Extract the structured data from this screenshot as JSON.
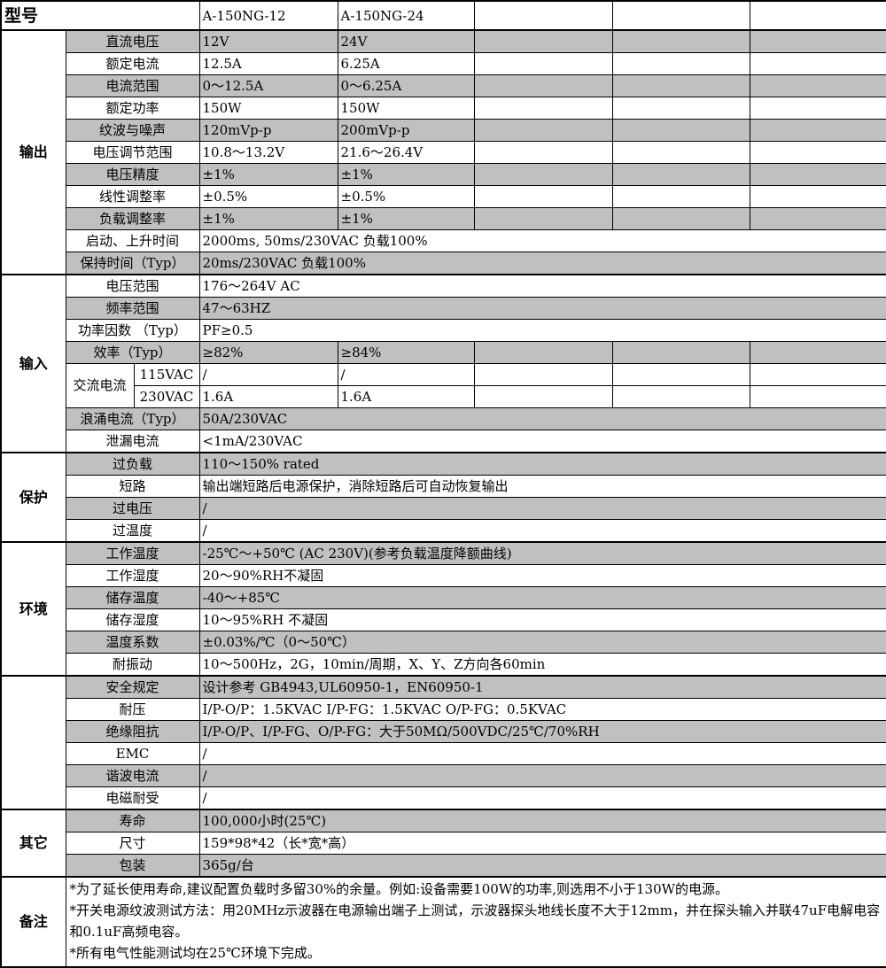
{
  "header": {
    "label": "型号",
    "models": [
      "A-150NG-12",
      "A-150NG-24",
      "",
      "",
      ""
    ]
  },
  "colors": {
    "row_shade": "#c0c0c0",
    "border": "#000000"
  },
  "sections": [
    {
      "name": "输出",
      "rows": [
        {
          "param": "直流电压",
          "gray": true,
          "values": [
            "12V",
            "24V",
            "",
            "",
            ""
          ]
        },
        {
          "param": "额定电流",
          "gray": false,
          "values": [
            "12.5A",
            "6.25A",
            "",
            "",
            ""
          ]
        },
        {
          "param": "电流范围",
          "gray": true,
          "values": [
            "0～12.5A",
            "0～6.25A",
            "",
            "",
            ""
          ]
        },
        {
          "param": "额定功率",
          "gray": false,
          "values": [
            "150W",
            "150W",
            "",
            "",
            ""
          ]
        },
        {
          "param": "纹波与噪声",
          "gray": true,
          "values": [
            "120mVp-p",
            "200mVp-p",
            "",
            "",
            ""
          ]
        },
        {
          "param": "电压调节范围",
          "gray": false,
          "values": [
            "10.8～13.2V",
            "21.6～26.4V",
            "",
            "",
            ""
          ]
        },
        {
          "param": "电压精度",
          "gray": true,
          "values": [
            "±1%",
            "±1%",
            "",
            "",
            ""
          ]
        },
        {
          "param": "线性调整率",
          "gray": false,
          "values": [
            "±0.5%",
            "±0.5%",
            "",
            "",
            ""
          ]
        },
        {
          "param": "负载调整率",
          "gray": true,
          "values": [
            "±1%",
            "±1%",
            "",
            "",
            ""
          ]
        },
        {
          "param": "启动、上升时间",
          "gray": false,
          "span": "2000ms, 50ms/230VAC 负载100%"
        },
        {
          "param": "保持时间（Typ）",
          "gray": true,
          "span": "20ms/230VAC 负载100%"
        }
      ]
    },
    {
      "name": "输入",
      "rows": [
        {
          "param": "电压范围",
          "gray": false,
          "span": "176～264V AC"
        },
        {
          "param": "频率范围",
          "gray": true,
          "span": "47～63HZ"
        },
        {
          "param": "功率因数 （Typ）",
          "gray": false,
          "span": "PF≥0.5"
        },
        {
          "param": "效率（Typ）",
          "gray": true,
          "values": [
            "≥82%",
            "≥84%",
            "",
            "",
            ""
          ]
        },
        {
          "group": "交流电流",
          "param": "115VAC",
          "gray": false,
          "values": [
            "/",
            "/",
            "",
            "",
            ""
          ]
        },
        {
          "group_cont": true,
          "param": "230VAC",
          "gray": false,
          "values": [
            "1.6A",
            "1.6A",
            "",
            "",
            ""
          ]
        },
        {
          "param": "浪涌电流（Typ）",
          "gray": true,
          "span": "50A/230VAC"
        },
        {
          "param": "泄漏电流",
          "gray": false,
          "span": "<1mA/230VAC"
        }
      ]
    },
    {
      "name": "保护",
      "rows": [
        {
          "param": "过负载",
          "gray": true,
          "span": "110～150% rated"
        },
        {
          "param": "短路",
          "gray": false,
          "span": "输出端短路后电源保护，消除短路后可自动恢复输出"
        },
        {
          "param": "过电压",
          "gray": true,
          "span": "/"
        },
        {
          "param": "过温度",
          "gray": false,
          "span": "/"
        }
      ]
    },
    {
      "name": "环境",
      "rows": [
        {
          "param": "工作温度",
          "gray": true,
          "span": "-25℃～+50℃ (AC 230V)(参考负载温度降额曲线)"
        },
        {
          "param": "工作湿度",
          "gray": false,
          "span": "20～90%RH不凝固"
        },
        {
          "param": "储存温度",
          "gray": true,
          "span": "-40～+85℃"
        },
        {
          "param": "储存湿度",
          "gray": false,
          "span": "10～95%RH 不凝固"
        },
        {
          "param": "温度系数",
          "gray": true,
          "span": "±0.03%/℃（0～50℃）"
        },
        {
          "param": "耐振动",
          "gray": false,
          "span": "10～500Hz，2G，10min/周期，X、Y、Z方向各60min"
        }
      ]
    },
    {
      "name": "",
      "rows": [
        {
          "param": "安全规定",
          "gray": true,
          "span": "设计参考 GB4943,UL60950-1，EN60950-1"
        },
        {
          "param": "耐压",
          "gray": false,
          "span": "I/P-O/P：1.5KVAC I/P-FG：1.5KVAC    O/P-FG：0.5KVAC"
        },
        {
          "param": "绝缘阻抗",
          "gray": true,
          "span": "I/P-O/P、I/P-FG、O/P-FG：大于50MΩ/500VDC/25℃/70%RH"
        },
        {
          "param": "EMC",
          "gray": false,
          "span": "/"
        },
        {
          "param": "谐波电流",
          "gray": true,
          "span": "/"
        },
        {
          "param": "电磁耐受",
          "gray": false,
          "span": "/"
        }
      ]
    },
    {
      "name": "其它",
      "rows": [
        {
          "param": "寿命",
          "gray": true,
          "span": "100,000小时(25℃)"
        },
        {
          "param": "尺寸",
          "gray": false,
          "span": "159*98*42（长*宽*高）"
        },
        {
          "param": "包装",
          "gray": true,
          "span": "365g/台"
        }
      ]
    }
  ],
  "notes": {
    "label": "备注",
    "lines": [
      "*为了延长使用寿命,建议配置负载时多留30%的余量。例如:设备需要100W的功率,则选用不小于130W的电源。",
      "*开关电源纹波测试方法：用20MHz示波器在电源输出端子上测试，示波器探头地线长度不大于12mm，并在探头输入并联47uF电解电容和0.1uF高频电容。",
      "*所有电气性能测试均在25℃环境下完成。"
    ]
  }
}
